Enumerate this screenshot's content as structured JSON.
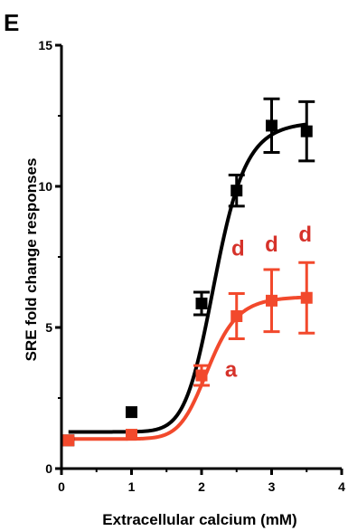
{
  "panel_label": "E",
  "colors": {
    "series_1": "#000000",
    "series_2": "#f2492c",
    "annotation": "#d6322a",
    "axis": "#000000"
  },
  "chart_data": {
    "type": "scatter",
    "xlabel": "Extracellular calcium (mM)",
    "ylabel": "SRE fold change responses",
    "xlim": [
      0,
      4
    ],
    "ylim": [
      0,
      15
    ],
    "xticks": [
      0,
      1,
      2,
      3,
      4
    ],
    "xtick_labels": [
      "0",
      "1",
      "2",
      "3",
      "4"
    ],
    "yticks": [
      0,
      5,
      10,
      15
    ],
    "ytick_labels": [
      "0",
      "5",
      "10",
      "15"
    ],
    "grid": false,
    "legend": "none",
    "series": [
      {
        "color": "#000000",
        "marker": "square",
        "points": [
          {
            "x": 0.1,
            "y": 1.0,
            "err": 0.0
          },
          {
            "x": 1.0,
            "y": 2.0,
            "err": 0.0
          },
          {
            "x": 2.0,
            "y": 5.85,
            "err": 0.4
          },
          {
            "x": 2.5,
            "y": 9.85,
            "err": 0.55
          },
          {
            "x": 3.0,
            "y": 12.15,
            "err": 0.95
          },
          {
            "x": 3.5,
            "y": 11.95,
            "err": 1.05
          }
        ],
        "fit": {
          "bottom": 1.3,
          "top": 12.3,
          "ec50": 2.2,
          "hill": 10
        }
      },
      {
        "color": "#f2492c",
        "marker": "square",
        "points": [
          {
            "x": 0.1,
            "y": 1.0,
            "err": 0.0
          },
          {
            "x": 1.0,
            "y": 1.2,
            "err": 0.0
          },
          {
            "x": 2.0,
            "y": 3.3,
            "err": 0.35
          },
          {
            "x": 2.5,
            "y": 5.4,
            "err": 0.8
          },
          {
            "x": 3.0,
            "y": 5.95,
            "err": 1.1
          },
          {
            "x": 3.5,
            "y": 6.05,
            "err": 1.25
          }
        ],
        "fit": {
          "bottom": 1.05,
          "top": 6.1,
          "ec50": 2.1,
          "hill": 10
        }
      }
    ],
    "annotations": [
      {
        "text": "a",
        "x": 2.42,
        "y": 3.25
      },
      {
        "text": "d",
        "x": 2.52,
        "y": 7.55
      },
      {
        "text": "d",
        "x": 3.0,
        "y": 7.7
      },
      {
        "text": "d",
        "x": 3.48,
        "y": 8.05
      }
    ]
  }
}
